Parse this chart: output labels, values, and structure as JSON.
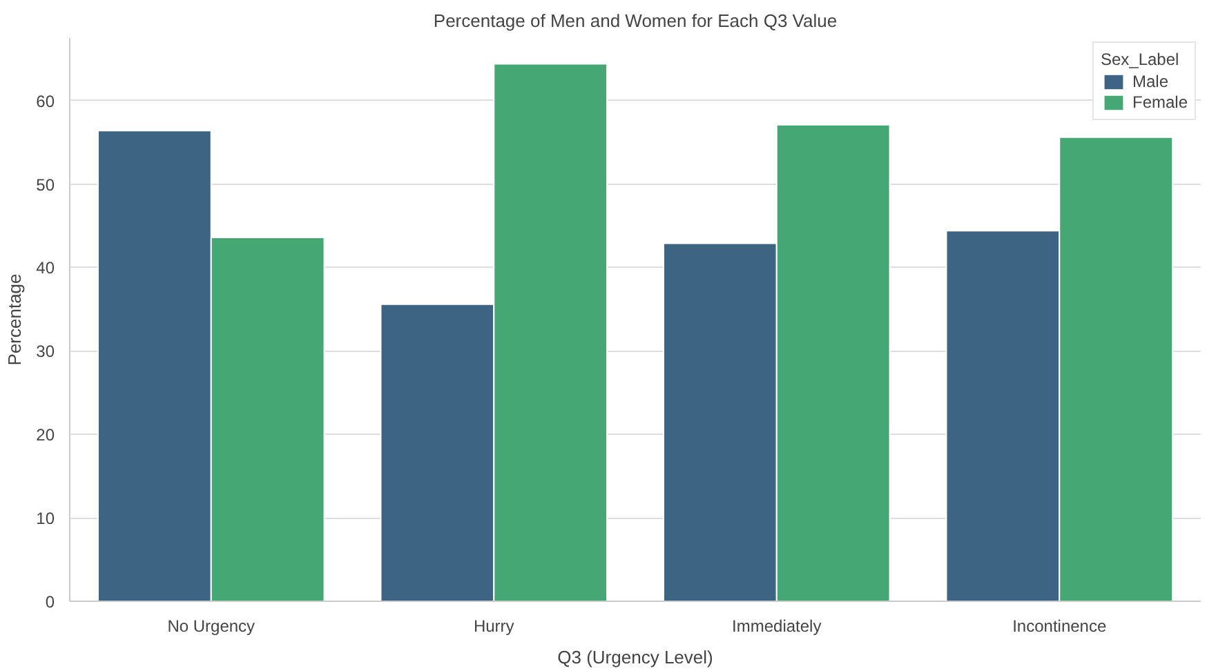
{
  "chart_data": {
    "type": "bar",
    "title": "Percentage of Men and Women for Each Q3 Value",
    "xlabel": "Q3 (Urgency Level)",
    "ylabel": "Percentage",
    "legend_title": "Sex_Label",
    "categories": [
      "No Urgency",
      "Hurry",
      "Immediately",
      "Incontinence"
    ],
    "series": [
      {
        "name": "Male",
        "color": "#3d6583",
        "values": [
          56.4,
          35.6,
          42.9,
          44.4
        ]
      },
      {
        "name": "Female",
        "color": "#45a874",
        "values": [
          43.6,
          64.4,
          57.1,
          55.6
        ]
      }
    ],
    "ylim": [
      0,
      67.5
    ],
    "yticks": [
      0,
      10,
      20,
      30,
      40,
      50,
      60
    ],
    "grid": "y",
    "legend": "top right"
  }
}
